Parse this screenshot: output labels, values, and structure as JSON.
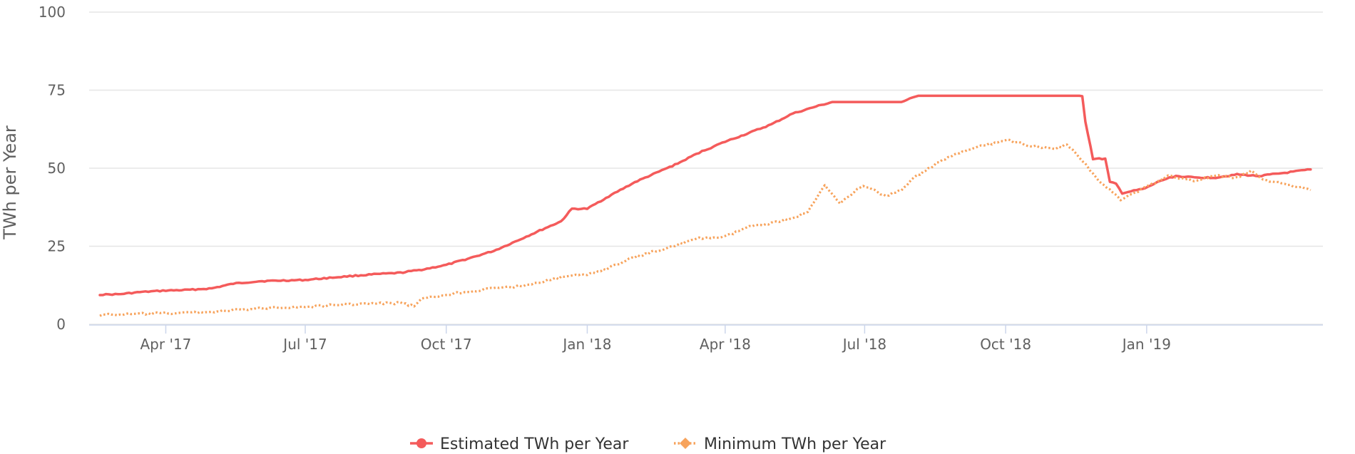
{
  "chart_data": {
    "type": "line",
    "ylabel": "TWh per Year",
    "xlabel": "",
    "ylim": [
      0,
      100
    ],
    "yticks": [
      0,
      25,
      50,
      75,
      100
    ],
    "xlim": [
      "2017-02-10",
      "2019-04-26"
    ],
    "xticks": [
      {
        "date": "2017-04-01",
        "label": "Apr '17"
      },
      {
        "date": "2017-07-01",
        "label": "Jul '17"
      },
      {
        "date": "2017-10-01",
        "label": "Oct '17"
      },
      {
        "date": "2018-01-01",
        "label": "Jan '18"
      },
      {
        "date": "2018-04-01",
        "label": "Apr '18"
      },
      {
        "date": "2018-07-01",
        "label": "Jul '18"
      },
      {
        "date": "2018-10-01",
        "label": "Oct '18"
      },
      {
        "date": "2019-01-01",
        "label": "Jan '19"
      }
    ],
    "grid": true,
    "legend_position": "bottom-center",
    "series": [
      {
        "name": "Estimated TWh per Year",
        "color": "#f45b5b",
        "style": "solid",
        "marker": "circle",
        "points": [
          [
            "2017-02-17",
            9.5
          ],
          [
            "2017-03-01",
            9.6
          ],
          [
            "2017-03-15",
            10.3
          ],
          [
            "2017-04-01",
            10.8
          ],
          [
            "2017-04-15",
            11.0
          ],
          [
            "2017-05-01",
            11.5
          ],
          [
            "2017-05-15",
            13.0
          ],
          [
            "2017-06-01",
            13.8
          ],
          [
            "2017-06-15",
            14.0
          ],
          [
            "2017-07-01",
            14.2
          ],
          [
            "2017-07-15",
            14.8
          ],
          [
            "2017-08-01",
            15.5
          ],
          [
            "2017-08-15",
            16.0
          ],
          [
            "2017-09-01",
            16.5
          ],
          [
            "2017-09-15",
            17.5
          ],
          [
            "2017-10-01",
            19.0
          ],
          [
            "2017-10-15",
            21.0
          ],
          [
            "2017-11-01",
            23.5
          ],
          [
            "2017-11-15",
            26.5
          ],
          [
            "2017-12-01",
            30.0
          ],
          [
            "2017-12-15",
            33.0
          ],
          [
            "2017-12-22",
            37.0
          ],
          [
            "2018-01-01",
            37.0
          ],
          [
            "2018-01-15",
            41.0
          ],
          [
            "2018-02-01",
            45.5
          ],
          [
            "2018-02-15",
            48.5
          ],
          [
            "2018-03-01",
            51.5
          ],
          [
            "2018-03-15",
            55.0
          ],
          [
            "2018-04-01",
            58.5
          ],
          [
            "2018-04-15",
            61.0
          ],
          [
            "2018-05-01",
            64.0
          ],
          [
            "2018-05-15",
            67.5
          ],
          [
            "2018-06-01",
            70.0
          ],
          [
            "2018-06-10",
            71.2
          ],
          [
            "2018-07-25",
            71.2
          ],
          [
            "2018-08-05",
            73.2
          ],
          [
            "2018-11-20",
            73.2
          ],
          [
            "2018-11-22",
            65.0
          ],
          [
            "2018-11-27",
            53.0
          ],
          [
            "2018-12-05",
            53.0
          ],
          [
            "2018-12-08",
            45.5
          ],
          [
            "2018-12-12",
            45.0
          ],
          [
            "2018-12-16",
            42.0
          ],
          [
            "2018-12-31",
            43.5
          ],
          [
            "2019-01-10",
            46.0
          ],
          [
            "2019-01-20",
            47.5
          ],
          [
            "2019-02-01",
            47.0
          ],
          [
            "2019-02-15",
            47.0
          ],
          [
            "2019-03-01",
            48.0
          ],
          [
            "2019-03-15",
            47.5
          ],
          [
            "2019-04-01",
            48.5
          ],
          [
            "2019-04-18",
            49.6
          ]
        ]
      },
      {
        "name": "Minimum TWh per Year",
        "color": "#f7a35c",
        "style": "dotted",
        "marker": "diamond",
        "points": [
          [
            "2017-02-17",
            3.0
          ],
          [
            "2017-03-15",
            3.3
          ],
          [
            "2017-04-01",
            3.5
          ],
          [
            "2017-05-01",
            4.0
          ],
          [
            "2017-05-15",
            4.5
          ],
          [
            "2017-06-01",
            5.0
          ],
          [
            "2017-06-15",
            5.5
          ],
          [
            "2017-07-01",
            5.5
          ],
          [
            "2017-07-15",
            6.0
          ],
          [
            "2017-08-01",
            6.5
          ],
          [
            "2017-09-01",
            6.8
          ],
          [
            "2017-09-10",
            5.8
          ],
          [
            "2017-09-15",
            8.0
          ],
          [
            "2017-10-01",
            9.5
          ],
          [
            "2017-10-15",
            10.5
          ],
          [
            "2017-11-01",
            11.5
          ],
          [
            "2017-11-15",
            12.0
          ],
          [
            "2017-12-01",
            13.5
          ],
          [
            "2017-12-15",
            15.0
          ],
          [
            "2018-01-01",
            16.0
          ],
          [
            "2018-01-15",
            18.0
          ],
          [
            "2018-02-01",
            21.5
          ],
          [
            "2018-02-15",
            23.5
          ],
          [
            "2018-03-01",
            25.5
          ],
          [
            "2018-03-15",
            27.5
          ],
          [
            "2018-04-01",
            28.0
          ],
          [
            "2018-04-15",
            31.0
          ],
          [
            "2018-05-01",
            32.5
          ],
          [
            "2018-05-15",
            34.0
          ],
          [
            "2018-05-25",
            36.0
          ],
          [
            "2018-06-05",
            44.5
          ],
          [
            "2018-06-15",
            39.0
          ],
          [
            "2018-06-30",
            44.5
          ],
          [
            "2018-07-15",
            41.0
          ],
          [
            "2018-07-25",
            43.0
          ],
          [
            "2018-08-01",
            46.5
          ],
          [
            "2018-08-15",
            51.0
          ],
          [
            "2018-09-01",
            55.0
          ],
          [
            "2018-09-15",
            57.0
          ],
          [
            "2018-10-01",
            59.0
          ],
          [
            "2018-10-15",
            57.5
          ],
          [
            "2018-11-01",
            56.0
          ],
          [
            "2018-11-10",
            57.5
          ],
          [
            "2018-11-20",
            52.5
          ],
          [
            "2018-12-01",
            46.0
          ],
          [
            "2018-12-15",
            40.0
          ],
          [
            "2019-01-01",
            44.0
          ],
          [
            "2019-01-15",
            47.5
          ],
          [
            "2019-02-01",
            46.0
          ],
          [
            "2019-02-15",
            47.5
          ],
          [
            "2019-03-01",
            47.0
          ],
          [
            "2019-03-10",
            49.0
          ],
          [
            "2019-03-20",
            46.0
          ],
          [
            "2019-04-01",
            45.0
          ],
          [
            "2019-04-18",
            43.0
          ]
        ]
      }
    ]
  }
}
